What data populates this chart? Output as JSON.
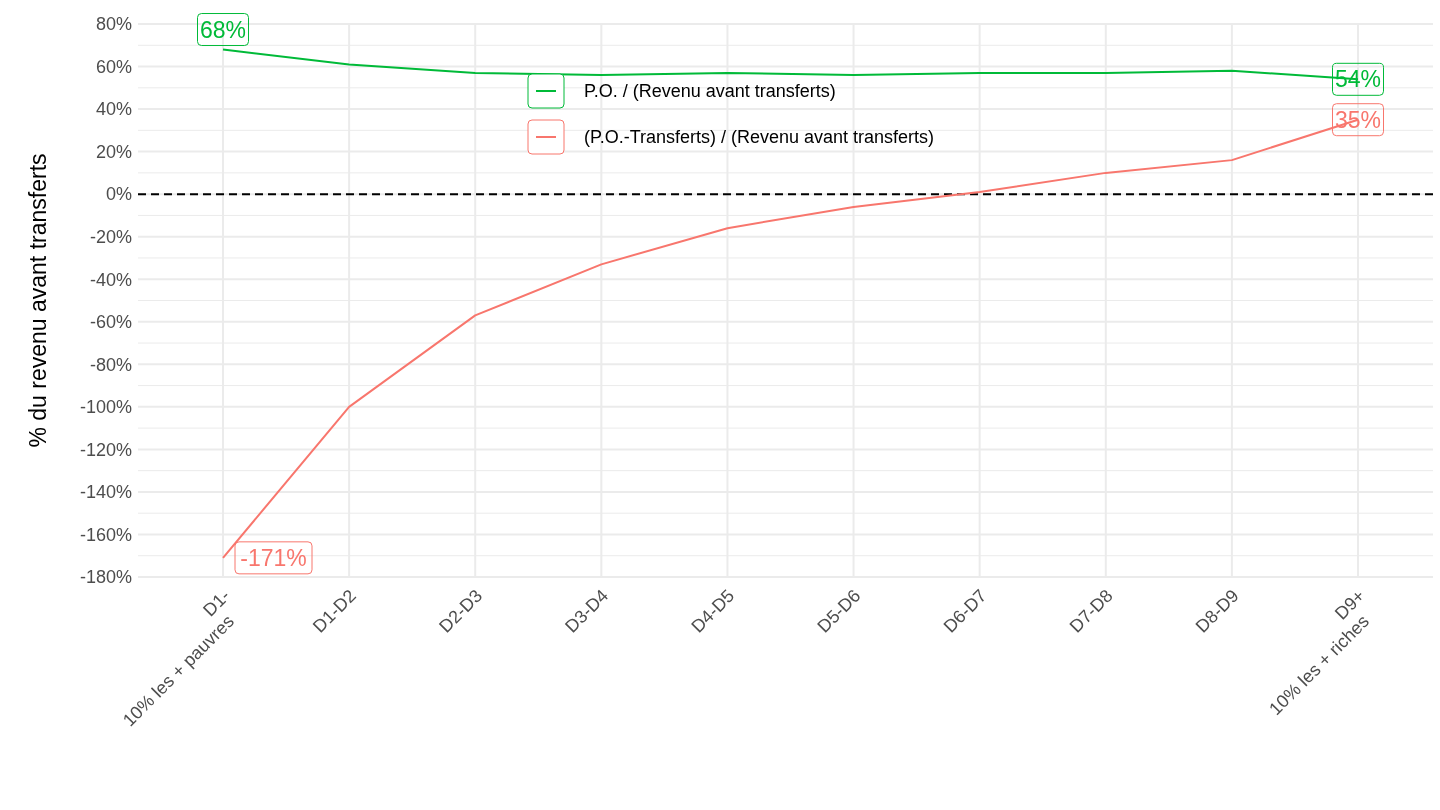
{
  "chart_data": {
    "type": "line",
    "ylabel": "% du revenu avant transferts",
    "categories": [
      "D1-\n10% les + pauvres",
      "D1-D2",
      "D2-D3",
      "D3-D4",
      "D4-D5",
      "D5-D6",
      "D6-D7",
      "D7-D8",
      "D8-D9",
      "D9+\n10% les + riches"
    ],
    "series": [
      {
        "name": "P.O. / (Revenu avant transferts)",
        "color": "#00ba38",
        "values": [
          68,
          61,
          57,
          56,
          57,
          56,
          57,
          57,
          58,
          54
        ],
        "value_labels": [
          "68%",
          null,
          null,
          null,
          null,
          null,
          null,
          null,
          null,
          "54%"
        ]
      },
      {
        "name": "(P.O.-Transferts) / (Revenu avant transferts)",
        "color": "#f8766d",
        "values": [
          -171,
          -100,
          -57,
          -33,
          -16,
          -6,
          1,
          10,
          16,
          35
        ],
        "value_labels": [
          "-171%",
          null,
          null,
          null,
          null,
          null,
          null,
          null,
          null,
          "35%"
        ]
      }
    ],
    "ylim": [
      -180,
      80
    ],
    "yticks": [
      {
        "value": -180,
        "label": "-180%"
      },
      {
        "value": -160,
        "label": "-160%"
      },
      {
        "value": -140,
        "label": "-140%"
      },
      {
        "value": -120,
        "label": "-120%"
      },
      {
        "value": -100,
        "label": "-100%"
      },
      {
        "value": -80,
        "label": "-80%"
      },
      {
        "value": -60,
        "label": "-60%"
      },
      {
        "value": -40,
        "label": "-40%"
      },
      {
        "value": -20,
        "label": "-20%"
      },
      {
        "value": 0,
        "label": "0%"
      },
      {
        "value": 20,
        "label": "20%"
      },
      {
        "value": 40,
        "label": "40%"
      },
      {
        "value": 60,
        "label": "60%"
      },
      {
        "value": 80,
        "label": "80%"
      }
    ],
    "ref_lines": [
      {
        "axis": "y",
        "value": 0,
        "color": "#000000",
        "line_style": "dashed"
      }
    ],
    "grid": true,
    "legend": "top",
    "marker": "none",
    "line_style": "solid"
  }
}
